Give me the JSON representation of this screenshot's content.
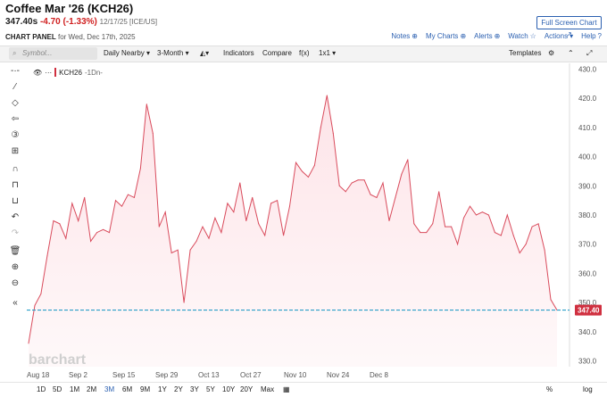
{
  "header": {
    "title": "Coffee Mar '26 (KCH26)",
    "last": "347.40s",
    "change": "-4.70 (-1.33%)",
    "meta": "12/17/25 [ICE/US]",
    "panel_label": "CHART PANEL",
    "panel_date": "for Wed, Dec 17th, 2025",
    "fullscreen": "Full Screen Chart"
  },
  "links": {
    "notes": "Notes",
    "mycharts": "My Charts",
    "alerts": "Alerts",
    "watch": "Watch",
    "actions": "Actions",
    "help": "Help"
  },
  "toolbar": {
    "search_placeholder": "Symbol...",
    "interval": "Daily Nearby",
    "range": "3-Month",
    "indicators": "Indicators",
    "compare": "Compare",
    "fx": "f(x)",
    "layout": "1x1",
    "templates": "Templates"
  },
  "legend": {
    "symbol": "KCH26",
    "interval": "-1Dn-"
  },
  "watermark": "barchart",
  "timeframes": [
    "1D",
    "5D",
    "1M",
    "2M",
    "3M",
    "6M",
    "9M",
    "1Y",
    "2Y",
    "3Y",
    "5Y",
    "10Y",
    "20Y",
    "Max"
  ],
  "active_timeframe": "3M",
  "bottom_right": {
    "percent": "%",
    "log": "log"
  },
  "chart_data": {
    "type": "area",
    "y_ticks": [
      330,
      340,
      350,
      360,
      370,
      380,
      390,
      400,
      410,
      420,
      430
    ],
    "ylim": [
      328,
      432
    ],
    "x_tick_labels": [
      "Aug 18",
      "Sep 2",
      "Sep 15",
      "Sep 29",
      "Oct 13",
      "Oct 27",
      "Nov 10",
      "Nov 24",
      "Dec 8"
    ],
    "last_value": 347.4,
    "last_label": "347.40",
    "values": [
      336,
      349,
      353,
      366,
      378,
      377,
      372,
      384,
      378,
      386,
      371,
      374,
      375,
      374,
      385,
      383,
      387,
      386,
      396,
      418,
      408,
      376,
      381,
      367,
      368,
      350,
      368,
      371,
      376,
      372,
      379,
      374,
      384,
      381,
      391,
      378,
      386,
      377,
      373,
      384,
      385,
      373,
      383,
      398,
      395,
      393,
      397,
      410,
      421,
      408,
      390,
      388,
      391,
      392,
      392,
      387,
      386,
      391,
      378,
      386,
      394,
      399,
      377,
      374,
      374,
      377,
      388,
      376,
      376,
      370,
      379,
      383,
      380,
      381,
      380,
      374,
      373,
      380,
      373,
      367,
      370,
      376,
      377,
      368,
      351,
      347.4
    ],
    "colors": {
      "line": "#d94b5c",
      "fill": "#fde4e8",
      "last_line": "#2a9ec8",
      "last_badge": "#d03040"
    }
  }
}
